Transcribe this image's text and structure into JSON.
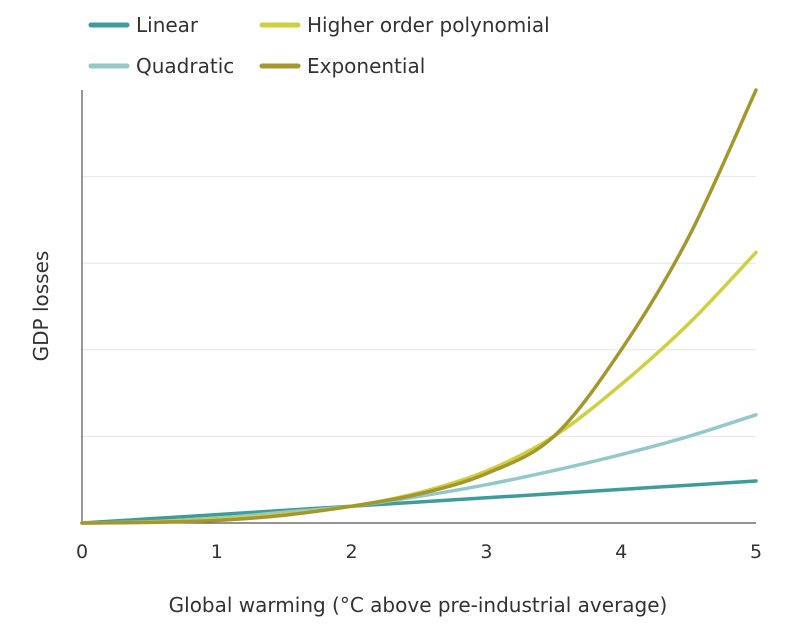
{
  "chart_data": {
    "type": "line",
    "title": "",
    "xlabel": "Global warming (°C above pre-industrial average)",
    "ylabel": "GDP losses",
    "xlim": [
      0,
      5
    ],
    "ylim": [
      0,
      1
    ],
    "x_ticks": [
      "0",
      "1",
      "2",
      "3",
      "4",
      "5"
    ],
    "y_tick_labels_shown": false,
    "grid": "horizontal",
    "legend_placement": "top",
    "x": [
      0,
      0.5,
      1,
      1.5,
      2,
      2.5,
      3,
      3.5,
      4,
      4.5,
      5
    ],
    "series": [
      {
        "name": "Linear",
        "color": "#3f9c9c",
        "values": [
          0,
          0.0097,
          0.0194,
          0.0291,
          0.0388,
          0.0485,
          0.0582,
          0.0679,
          0.0776,
          0.0873,
          0.097
        ]
      },
      {
        "name": "Quadratic",
        "color": "#94c8ca",
        "values": [
          0,
          0.0028,
          0.011,
          0.0248,
          0.0388,
          0.0615,
          0.0885,
          0.121,
          0.158,
          0.2,
          0.25
        ]
      },
      {
        "name": "Higher order polynomial",
        "color": "#cfd040",
        "values": [
          0,
          0.002,
          0.0085,
          0.02,
          0.0388,
          0.07,
          0.12,
          0.2,
          0.32,
          0.46,
          0.625
        ]
      },
      {
        "name": "Exponential",
        "color": "#a4972c",
        "values": [
          0,
          0.0015,
          0.006,
          0.018,
          0.0388,
          0.067,
          0.114,
          0.2,
          0.4,
          0.66,
          1.0
        ]
      }
    ]
  }
}
